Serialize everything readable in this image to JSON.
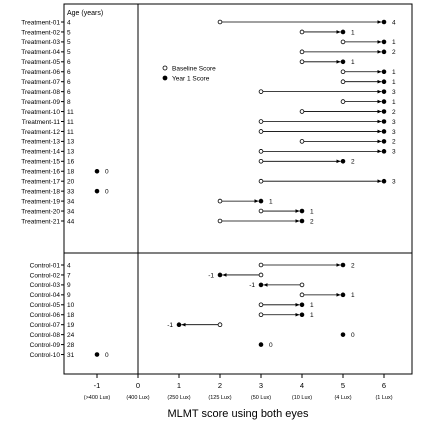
{
  "chart_data": {
    "type": "scatter",
    "title": "",
    "xlabel": "MLMT score using both eyes",
    "col_header": "Age (years)",
    "xlim": [
      -2,
      7
    ],
    "x_ticks": [
      {
        "value": -1,
        "label": "-1",
        "sublabel": "(>400 Lux)"
      },
      {
        "value": 0,
        "label": "0",
        "sublabel": "(400 Lux)"
      },
      {
        "value": 1,
        "label": "1",
        "sublabel": "(250 Lux)"
      },
      {
        "value": 2,
        "label": "2",
        "sublabel": "(125 Lux)"
      },
      {
        "value": 3,
        "label": "3",
        "sublabel": "(50 Lux)"
      },
      {
        "value": 4,
        "label": "4",
        "sublabel": "(10 Lux)"
      },
      {
        "value": 5,
        "label": "5",
        "sublabel": "(4 Lux)"
      },
      {
        "value": 6,
        "label": "6",
        "sublabel": "(1 Lux)"
      }
    ],
    "legend": {
      "placement": "top-left",
      "entries": [
        {
          "name": "Baseline Score",
          "marker": "open-circle"
        },
        {
          "name": "Year 1 Score",
          "marker": "filled-circle"
        }
      ]
    },
    "groups": [
      {
        "name": "treatment",
        "rows": [
          {
            "label": "Treatment-01",
            "age": 4,
            "baseline": 2,
            "year1": 6,
            "change": "4"
          },
          {
            "label": "Treatment-02",
            "age": 5,
            "baseline": 4,
            "year1": 5,
            "change": "1"
          },
          {
            "label": "Treatment-03",
            "age": 5,
            "baseline": 5,
            "year1": 6,
            "change": "1"
          },
          {
            "label": "Treatment-04",
            "age": 5,
            "baseline": 4,
            "year1": 6,
            "change": "2"
          },
          {
            "label": "Treatment-05",
            "age": 6,
            "baseline": 4,
            "year1": 5,
            "change": "1"
          },
          {
            "label": "Treatment-06",
            "age": 6,
            "baseline": 5,
            "year1": 6,
            "change": "1"
          },
          {
            "label": "Treatment-07",
            "age": 6,
            "baseline": 5,
            "year1": 6,
            "change": "1"
          },
          {
            "label": "Treatment-08",
            "age": 6,
            "baseline": 3,
            "year1": 6,
            "change": "3"
          },
          {
            "label": "Treatment-09",
            "age": 8,
            "baseline": 5,
            "year1": 6,
            "change": "1"
          },
          {
            "label": "Treatment-10",
            "age": 11,
            "baseline": 4,
            "year1": 6,
            "change": "2"
          },
          {
            "label": "Treatment-11",
            "age": 11,
            "baseline": 3,
            "year1": 6,
            "change": "3"
          },
          {
            "label": "Treatment-12",
            "age": 11,
            "baseline": 3,
            "year1": 6,
            "change": "3"
          },
          {
            "label": "Treatment-13",
            "age": 13,
            "baseline": 4,
            "year1": 6,
            "change": "2"
          },
          {
            "label": "Treatment-14",
            "age": 13,
            "baseline": 3,
            "year1": 6,
            "change": "3"
          },
          {
            "label": "Treatment-15",
            "age": 16,
            "baseline": 3,
            "year1": 5,
            "change": "2"
          },
          {
            "label": "Treatment-16",
            "age": 18,
            "baseline": -1,
            "year1": -1,
            "change": "0"
          },
          {
            "label": "Treatment-17",
            "age": 20,
            "baseline": 3,
            "year1": 6,
            "change": "3"
          },
          {
            "label": "Treatment-18",
            "age": 33,
            "baseline": -1,
            "year1": -1,
            "change": "0"
          },
          {
            "label": "Treatment-19",
            "age": 34,
            "baseline": 2,
            "year1": 3,
            "change": "1"
          },
          {
            "label": "Treatment-20",
            "age": 34,
            "baseline": 3,
            "year1": 4,
            "change": "1"
          },
          {
            "label": "Treatment-21",
            "age": 44,
            "baseline": 2,
            "year1": 4,
            "change": "2"
          }
        ]
      },
      {
        "name": "control",
        "rows": [
          {
            "label": "Control-01",
            "age": 4,
            "baseline": 3,
            "year1": 5,
            "change": "2"
          },
          {
            "label": "Control-02",
            "age": 7,
            "baseline": 3,
            "year1": 2,
            "change": "-1"
          },
          {
            "label": "Control-03",
            "age": 9,
            "baseline": 4,
            "year1": 3,
            "change": "-1"
          },
          {
            "label": "Control-04",
            "age": 9,
            "baseline": 4,
            "year1": 5,
            "change": "1"
          },
          {
            "label": "Control-05",
            "age": 10,
            "baseline": 3,
            "year1": 4,
            "change": "1"
          },
          {
            "label": "Control-06",
            "age": 18,
            "baseline": 3,
            "year1": 4,
            "change": "1"
          },
          {
            "label": "Control-07",
            "age": 19,
            "baseline": 2,
            "year1": 1,
            "change": "-1"
          },
          {
            "label": "Control-08",
            "age": 24,
            "baseline": 5,
            "year1": 5,
            "change": "0"
          },
          {
            "label": "Control-09",
            "age": 28,
            "baseline": 3,
            "year1": 3,
            "change": "0"
          },
          {
            "label": "Control-10",
            "age": 31,
            "baseline": -1,
            "year1": -1,
            "change": "0"
          }
        ]
      }
    ]
  }
}
